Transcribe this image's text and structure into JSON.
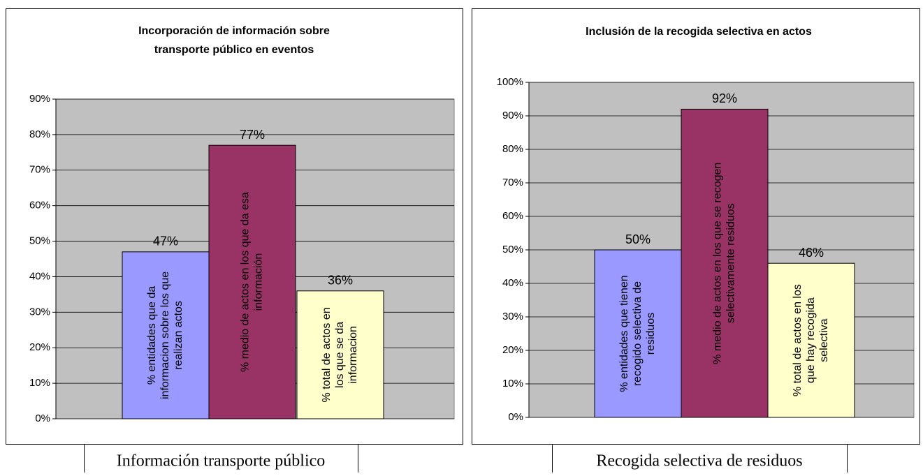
{
  "chart_data": [
    {
      "type": "bar",
      "title": "Incorporación de información sobre transporte público en eventos",
      "categories": [
        "% entidades que da informacion sobre los que realizan actos",
        "% medio de actos en los que da esa información",
        "% total de actos en los que se da informacion"
      ],
      "values": [
        47,
        77,
        36
      ],
      "value_labels": [
        "47%",
        "77%",
        "36%"
      ],
      "colors": [
        "#9999ff",
        "#993366",
        "#ffffcc"
      ],
      "ylim": [
        0,
        90
      ],
      "yticks": [
        {
          "value": 0,
          "label": "0%"
        },
        {
          "value": 10,
          "label": "10%"
        },
        {
          "value": 20,
          "label": "20%"
        },
        {
          "value": 30,
          "label": "30%"
        },
        {
          "value": 40,
          "label": "40%"
        },
        {
          "value": 50,
          "label": "50%"
        },
        {
          "value": 60,
          "label": "60%"
        },
        {
          "value": 70,
          "label": "70%"
        },
        {
          "value": 80,
          "label": "80%"
        },
        {
          "value": 90,
          "label": "90%"
        }
      ],
      "grid": true
    },
    {
      "type": "bar",
      "title": "Inclusión de la recogida selectiva en actos",
      "categories": [
        "% entidades que tienen recogido selectiva de residuos",
        "% medio de actos en los que se recogen selectivamente residuos",
        "% total de actos en los que hay recogida selectiva"
      ],
      "values": [
        50,
        92,
        46
      ],
      "value_labels": [
        "50%",
        "92%",
        "46%"
      ],
      "colors": [
        "#9999ff",
        "#993366",
        "#ffffcc"
      ],
      "ylim": [
        0,
        100
      ],
      "yticks": [
        {
          "value": 0,
          "label": "0%"
        },
        {
          "value": 10,
          "label": "10%"
        },
        {
          "value": 20,
          "label": "20%"
        },
        {
          "value": 30,
          "label": "30%"
        },
        {
          "value": 40,
          "label": "40%"
        },
        {
          "value": 50,
          "label": "50%"
        },
        {
          "value": 60,
          "label": "60%"
        },
        {
          "value": 70,
          "label": "70%"
        },
        {
          "value": 80,
          "label": "80%"
        },
        {
          "value": 90,
          "label": "90%"
        },
        {
          "value": 100,
          "label": "100%"
        }
      ],
      "grid": true
    }
  ],
  "captions": [
    "Información transporte público",
    "Recogida selectiva de residuos"
  ]
}
